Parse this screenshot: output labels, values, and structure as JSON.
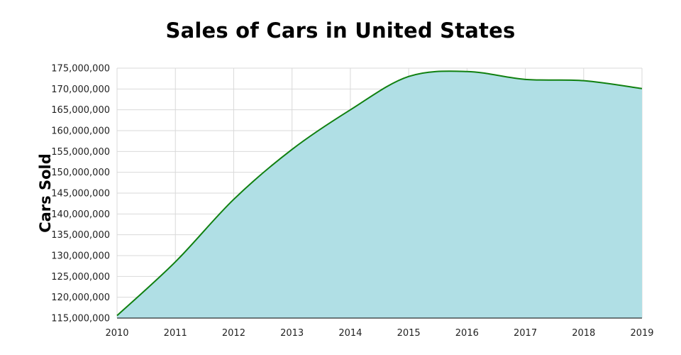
{
  "chart_data": {
    "type": "area",
    "title": "Sales of Cars in United States",
    "xlabel": "",
    "ylabel": "Cars Sold",
    "x": [
      2010,
      2011,
      2012,
      2013,
      2014,
      2015,
      2016,
      2017,
      2018,
      2019
    ],
    "x_tick_labels": [
      "2010",
      "2011",
      "2012",
      "2013",
      "2014",
      "2015",
      "2016",
      "2017",
      "2018",
      "2019"
    ],
    "series": [
      {
        "values": [
          115600000,
          128500000,
          143500000,
          155500000,
          165000000,
          173000000,
          174200000,
          172300000,
          172000000,
          170100000
        ]
      }
    ],
    "ylim": [
      115000000,
      175000000
    ],
    "yticks": [
      115000000,
      120000000,
      125000000,
      130000000,
      135000000,
      140000000,
      145000000,
      150000000,
      155000000,
      160000000,
      165000000,
      170000000,
      175000000
    ],
    "ytick_labels": [
      "115,000,000",
      "120,000,000",
      "125,000,000",
      "130,000,000",
      "135,000,000",
      "140,000,000",
      "145,000,000",
      "150,000,000",
      "155,000,000",
      "160,000,000",
      "165,000,000",
      "170,000,000",
      "175,000,000"
    ],
    "grid": true,
    "legend": "none",
    "colors": {
      "line": "#108010",
      "fill": "#b0dfe5",
      "grid": "#d9d9d9",
      "axis": "#000000"
    }
  }
}
